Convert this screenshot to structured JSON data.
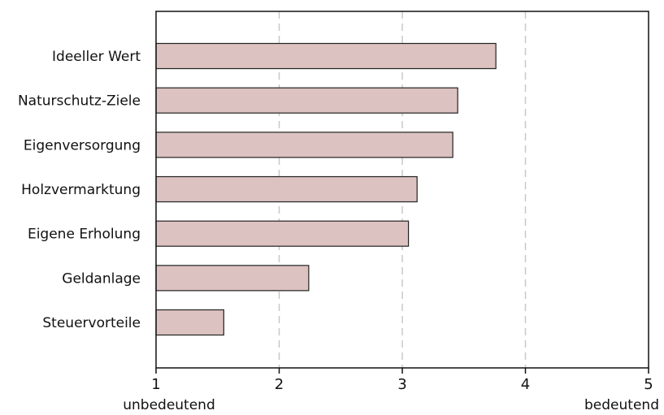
{
  "chart_data": {
    "type": "bar",
    "orientation": "horizontal",
    "categories": [
      "Ideeller Wert",
      "Naturschutz-Ziele",
      "Eigenversorgung",
      "Holzvermarktung",
      "Eigene Erholung",
      "Geldanlage",
      "Steuervorteile"
    ],
    "values": [
      3.76,
      3.45,
      3.41,
      3.12,
      3.05,
      2.24,
      1.55
    ],
    "xlim": [
      1,
      5
    ],
    "xticks": [
      "1",
      "2",
      "3",
      "4",
      "5"
    ],
    "x_end_labels": {
      "low": "unbedeutend",
      "high": "bedeutend"
    },
    "grid": "vertical dashed",
    "colors": {
      "bar_fill": "#dcc2c0",
      "bar_stroke": "#222222",
      "grid": "#c8c8c8",
      "axis": "#111111"
    }
  }
}
